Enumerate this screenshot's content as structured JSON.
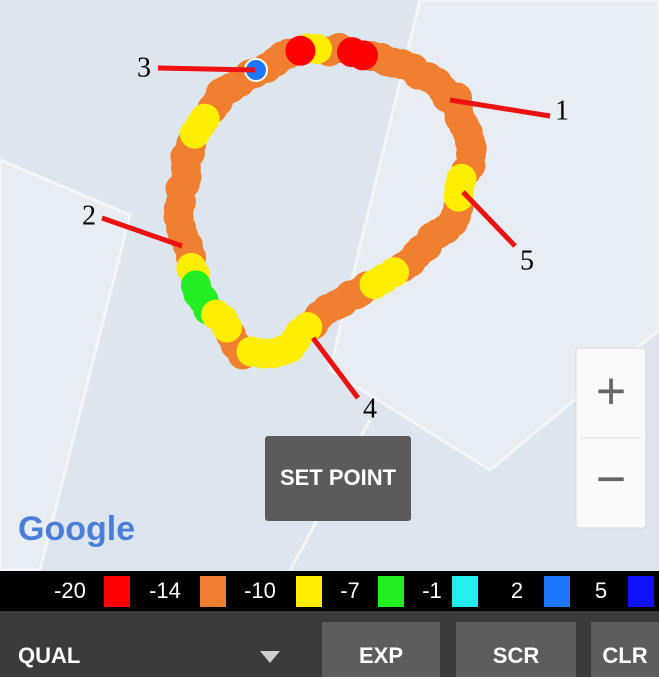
{
  "map": {
    "attribution": "Google",
    "zoom_in": "+",
    "zoom_out": "−",
    "button": "SET POINT",
    "callouts": [
      "1",
      "2",
      "3",
      "4",
      "5"
    ]
  },
  "legend": [
    {
      "label": "-20",
      "color": "#ff0000"
    },
    {
      "label": "-14",
      "color": "#f08030"
    },
    {
      "label": "-10",
      "color": "#ffee00"
    },
    {
      "label": "-7",
      "color": "#22ee22"
    },
    {
      "label": "-1",
      "color": "#22eeee"
    },
    {
      "label": "2",
      "color": "#1e78ff"
    },
    {
      "label": "5",
      "color": "#1010ff"
    }
  ],
  "toolbar": {
    "mode": "QUAL",
    "buttons": [
      "EXP",
      "SCR",
      "CLR"
    ]
  }
}
